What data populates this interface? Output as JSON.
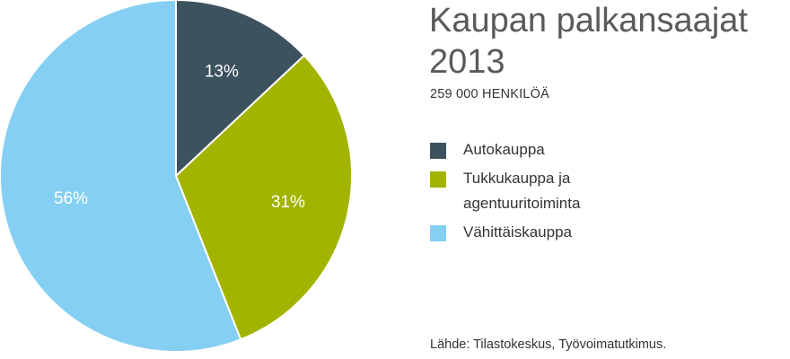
{
  "title_line1": "Kaupan palkansaajat",
  "title_line2": "2013",
  "subtitle": "259 000 HENKILÖÄ",
  "source": "Lähde: Tilastokeskus, Työvoimatutkimus.",
  "chart_data": {
    "type": "pie",
    "title": "Kaupan palkansaajat 2013",
    "subtitle": "259 000 HENKILÖÄ",
    "legend_position": "right",
    "slices": [
      {
        "label": "Autokauppa",
        "value": 13,
        "value_label": "13%",
        "color": "#3d525f"
      },
      {
        "label": "Tukkukauppa ja agentuuritoiminta",
        "value": 31,
        "value_label": "31%",
        "color": "#a2b400"
      },
      {
        "label": "Vähittäiskauppa",
        "value": 56,
        "value_label": "56%",
        "color": "#84cff2"
      }
    ]
  }
}
